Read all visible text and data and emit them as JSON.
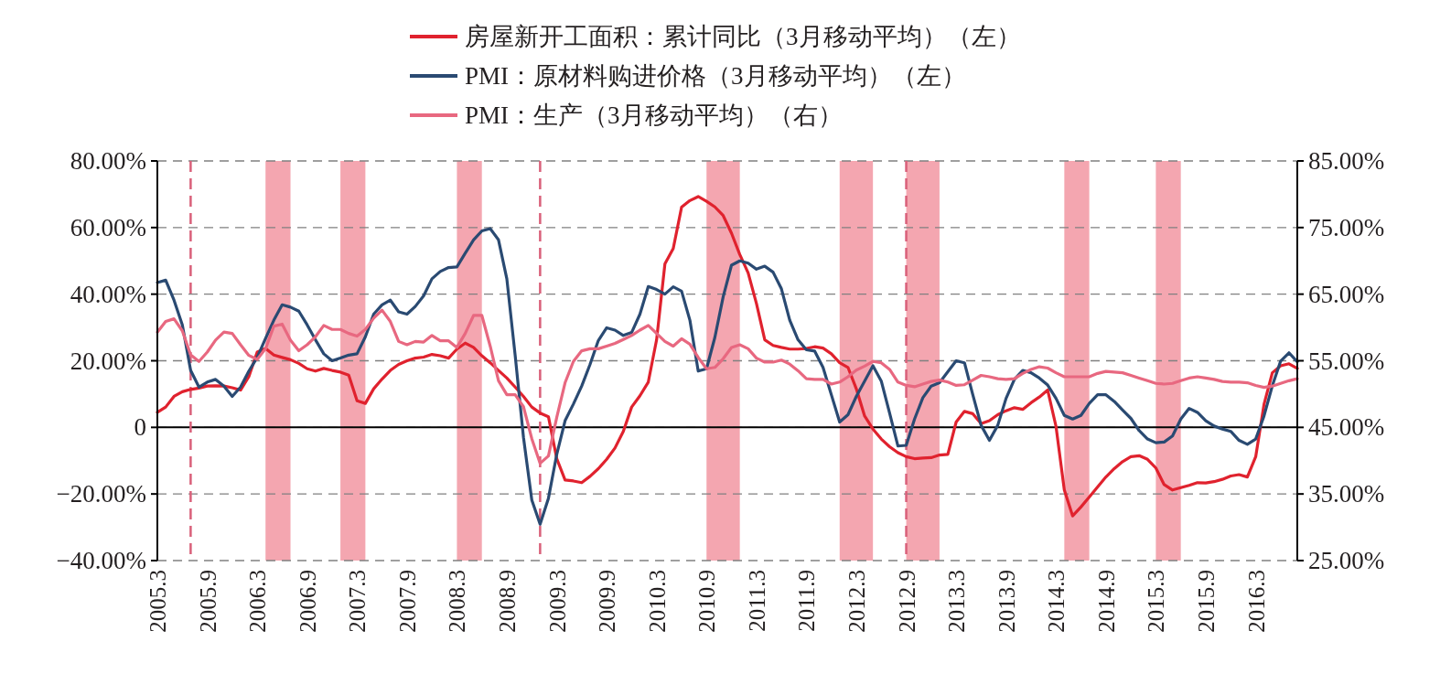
{
  "chart_data": {
    "type": "line",
    "x": [
      "2005-03",
      "2005-04",
      "2005-05",
      "2005-06",
      "2005-07",
      "2005-08",
      "2005-09",
      "2005-10",
      "2005-11",
      "2005-12",
      "2006-01",
      "2006-02",
      "2006-03",
      "2006-04",
      "2006-05",
      "2006-06",
      "2006-07",
      "2006-08",
      "2006-09",
      "2006-10",
      "2006-11",
      "2006-12",
      "2007-01",
      "2007-02",
      "2007-03",
      "2007-04",
      "2007-05",
      "2007-06",
      "2007-07",
      "2007-08",
      "2007-09",
      "2007-10",
      "2007-11",
      "2007-12",
      "2008-01",
      "2008-02",
      "2008-03",
      "2008-04",
      "2008-05",
      "2008-06",
      "2008-07",
      "2008-08",
      "2008-09",
      "2008-10",
      "2008-11",
      "2008-12",
      "2009-01",
      "2009-02",
      "2009-03",
      "2009-04",
      "2009-05",
      "2009-06",
      "2009-07",
      "2009-08",
      "2009-09",
      "2009-10",
      "2009-11",
      "2009-12",
      "2010-01",
      "2010-02",
      "2010-03",
      "2010-04",
      "2010-05",
      "2010-06",
      "2010-07",
      "2010-08",
      "2010-09",
      "2010-10",
      "2010-11",
      "2010-12",
      "2011-01",
      "2011-02",
      "2011-03",
      "2011-04",
      "2011-05",
      "2011-06",
      "2011-07",
      "2011-08",
      "2011-09",
      "2011-10",
      "2011-11",
      "2011-12",
      "2012-01",
      "2012-02",
      "2012-03",
      "2012-04",
      "2012-05",
      "2012-06",
      "2012-07",
      "2012-08",
      "2012-09",
      "2012-10",
      "2012-11",
      "2012-12",
      "2013-01",
      "2013-02",
      "2013-03",
      "2013-04",
      "2013-05",
      "2013-06",
      "2013-07",
      "2013-08",
      "2013-09",
      "2013-10",
      "2013-11",
      "2013-12",
      "2014-01",
      "2014-02",
      "2014-03",
      "2014-04",
      "2014-05",
      "2014-06",
      "2014-07",
      "2014-08",
      "2014-09",
      "2014-10",
      "2014-11",
      "2014-12",
      "2015-01",
      "2015-02",
      "2015-03",
      "2015-04",
      "2015-05",
      "2015-06",
      "2015-07",
      "2015-08",
      "2015-09",
      "2015-10",
      "2015-11",
      "2015-12",
      "2016-01",
      "2016-02",
      "2016-03",
      "2016-04",
      "2016-05",
      "2016-06",
      "2016-07",
      "2016-08"
    ],
    "xlim": [
      "2005-03",
      "2016-08"
    ],
    "xticks": [
      {
        "value": "2005-03",
        "label": "2005.3"
      },
      {
        "value": "2005-09",
        "label": "2005.9"
      },
      {
        "value": "2006-03",
        "label": "2006.3"
      },
      {
        "value": "2006-09",
        "label": "2006.9"
      },
      {
        "value": "2007-03",
        "label": "2007.3"
      },
      {
        "value": "2007-09",
        "label": "2007.9"
      },
      {
        "value": "2008-03",
        "label": "2008.3"
      },
      {
        "value": "2008-09",
        "label": "2008.9"
      },
      {
        "value": "2009-03",
        "label": "2009.3"
      },
      {
        "value": "2009-09",
        "label": "2009.9"
      },
      {
        "value": "2010-03",
        "label": "2010.3"
      },
      {
        "value": "2010-09",
        "label": "2010.9"
      },
      {
        "value": "2011-03",
        "label": "2011.3"
      },
      {
        "value": "2011-09",
        "label": "2011.9"
      },
      {
        "value": "2012-03",
        "label": "2012.3"
      },
      {
        "value": "2012-09",
        "label": "2012.9"
      },
      {
        "value": "2013-03",
        "label": "2013.3"
      },
      {
        "value": "2013-09",
        "label": "2013.9"
      },
      {
        "value": "2014-03",
        "label": "2014.3"
      },
      {
        "value": "2014-09",
        "label": "2014.9"
      },
      {
        "value": "2015-03",
        "label": "2015.3"
      },
      {
        "value": "2015-09",
        "label": "2015.9"
      },
      {
        "value": "2016-03",
        "label": "2016.3"
      }
    ],
    "ylim": [
      -40,
      80
    ],
    "yticks": [
      {
        "value": -40,
        "label": "−40.00%"
      },
      {
        "value": -20,
        "label": "−20.00%"
      },
      0,
      {
        "value": 20,
        "label": "20.00%"
      },
      {
        "value": 40,
        "label": "40.00%"
      },
      {
        "value": 60,
        "label": "60.00%"
      },
      {
        "value": 80,
        "label": "80.00%"
      }
    ],
    "y2lim": [
      25,
      85
    ],
    "y2ticks": [
      {
        "value": 25,
        "label": "25.00%"
      },
      {
        "value": 35,
        "label": "35.00%"
      },
      {
        "value": 45,
        "label": "45.00%"
      },
      {
        "value": 55,
        "label": "55.00%"
      },
      {
        "value": 65,
        "label": "65.00%"
      },
      {
        "value": 75,
        "label": "75.00%"
      },
      {
        "value": 85,
        "label": "85.00%"
      }
    ],
    "grid": "y",
    "legend": "top",
    "line_style": "solid",
    "series": [
      {
        "name": "房屋新开工面积：累计同比（3月移动平均）（左）",
        "color": "#e0222e",
        "values": [
          4.5,
          6.1,
          9.3,
          10.7,
          11.4,
          11.8,
          12.4,
          12.5,
          12.4,
          11.9,
          11.2,
          15.3,
          22.6,
          23.7,
          21.7,
          21.0,
          20.3,
          19.2,
          17.6,
          16.9,
          17.7,
          17.1,
          16.6,
          15.7,
          8.0,
          7.2,
          11.6,
          14.5,
          17.1,
          18.9,
          20.0,
          20.8,
          21.1,
          21.9,
          21.5,
          20.8,
          23.5,
          25.3,
          24.0,
          21.5,
          19.4,
          17.1,
          14.8,
          12.1,
          9.3,
          6.1,
          4.3,
          3.2,
          -9.4,
          -15.8,
          -16.1,
          -16.6,
          -14.7,
          -12.4,
          -9.6,
          -6.2,
          -1.2,
          6.1,
          9.5,
          13.6,
          26.3,
          49.1,
          53.7,
          66.1,
          68.1,
          69.3,
          67.9,
          66.2,
          63.6,
          58.3,
          51.9,
          46.4,
          37.2,
          26.3,
          24.6,
          24.0,
          23.5,
          23.5,
          23.7,
          24.2,
          23.8,
          22.1,
          19.4,
          18.0,
          11.6,
          3.4,
          -0.5,
          -3.5,
          -5.8,
          -7.6,
          -8.8,
          -9.4,
          -9.2,
          -9.1,
          -8.3,
          -8.1,
          1.6,
          4.8,
          4.1,
          1.1,
          2.0,
          3.8,
          5.0,
          5.9,
          5.4,
          7.4,
          9.1,
          11.2,
          0.3,
          -18.8,
          -26.6,
          -23.9,
          -20.9,
          -17.9,
          -14.9,
          -12.4,
          -10.3,
          -8.8,
          -8.5,
          -9.6,
          -12.2,
          -17.2,
          -18.8,
          -18.1,
          -17.4,
          -16.6,
          -16.7,
          -16.3,
          -15.6,
          -14.6,
          -14.2,
          -14.9,
          -8.8,
          6.9,
          16.4,
          18.5,
          19.1,
          17.7
        ]
      },
      {
        "name": "PMI：原材料购进价格（3月移动平均）（左）",
        "color": "#2a4a72",
        "values": [
          43.5,
          44.2,
          38.2,
          30.8,
          17.1,
          12.1,
          13.6,
          14.4,
          12.4,
          9.3,
          12.1,
          16.9,
          21.0,
          26.7,
          32.2,
          36.8,
          36.1,
          34.9,
          30.8,
          26.3,
          22.1,
          20.0,
          20.8,
          21.7,
          22.1,
          27.2,
          34.0,
          36.8,
          38.2,
          34.7,
          34.0,
          36.3,
          39.5,
          44.6,
          46.8,
          48.0,
          48.2,
          52.3,
          56.3,
          59.0,
          59.7,
          56.3,
          44.6,
          21.7,
          -3.0,
          -21.8,
          -29.1,
          -21.3,
          -8.1,
          2.0,
          7.0,
          12.4,
          18.9,
          26.1,
          29.9,
          29.2,
          27.6,
          28.5,
          34.0,
          42.3,
          41.4,
          40.0,
          42.2,
          40.9,
          32.2,
          16.9,
          17.6,
          27.0,
          39.2,
          48.7,
          50.0,
          49.3,
          47.5,
          48.4,
          46.6,
          41.6,
          32.2,
          26.3,
          23.3,
          22.9,
          18.0,
          9.8,
          1.6,
          3.8,
          9.3,
          13.9,
          18.5,
          13.9,
          4.3,
          -5.6,
          -5.4,
          2.5,
          8.9,
          12.4,
          13.4,
          16.7,
          20.0,
          19.4,
          9.8,
          0.6,
          -3.9,
          0.6,
          8.7,
          14.4,
          17.1,
          16.4,
          14.8,
          12.7,
          8.7,
          3.6,
          2.5,
          3.6,
          7.2,
          9.8,
          9.8,
          7.8,
          5.2,
          2.7,
          -1.0,
          -3.5,
          -4.6,
          -4.4,
          -2.6,
          2.5,
          5.7,
          4.5,
          2.0,
          0.4,
          -0.5,
          -1.2,
          -3.9,
          -5.1,
          -3.5,
          3.4,
          12.5,
          19.9,
          22.4,
          19.7
        ]
      },
      {
        "name": "PMI：生产（3月移动平均）（右）",
        "color": "#e86880",
        "axis": "y2",
        "values": [
          59.3,
          60.9,
          61.3,
          59.5,
          55.9,
          54.9,
          56.3,
          58.1,
          59.3,
          59.1,
          57.4,
          55.8,
          55.2,
          56.8,
          60.2,
          60.5,
          58.1,
          56.5,
          57.4,
          58.6,
          60.3,
          59.7,
          59.7,
          59.1,
          58.7,
          59.7,
          61.4,
          62.6,
          60.9,
          57.9,
          57.4,
          57.9,
          57.8,
          58.8,
          58.0,
          58.0,
          57.0,
          59.1,
          61.8,
          61.8,
          57.2,
          52.0,
          49.9,
          49.9,
          48.1,
          43.3,
          39.6,
          40.7,
          46.5,
          51.7,
          54.9,
          56.5,
          56.8,
          56.8,
          57.2,
          57.6,
          58.2,
          58.8,
          59.6,
          60.3,
          59.1,
          57.9,
          57.2,
          58.3,
          57.5,
          55.5,
          53.8,
          54.0,
          55.3,
          57.0,
          57.4,
          56.8,
          55.4,
          54.8,
          54.8,
          55.1,
          54.5,
          53.5,
          52.3,
          52.2,
          52.2,
          51.5,
          51.8,
          52.6,
          53.6,
          54.2,
          54.9,
          54.7,
          53.7,
          51.8,
          51.3,
          51.1,
          51.5,
          51.9,
          52.1,
          51.8,
          51.3,
          51.4,
          52.1,
          52.8,
          52.6,
          52.3,
          52.2,
          52.3,
          53.1,
          53.7,
          54.1,
          53.9,
          53.2,
          52.6,
          52.6,
          52.6,
          52.6,
          53.1,
          53.4,
          53.3,
          53.2,
          52.8,
          52.4,
          52.0,
          51.6,
          51.5,
          51.6,
          52.0,
          52.4,
          52.6,
          52.4,
          52.2,
          51.9,
          51.8,
          51.8,
          51.7,
          51.3,
          51.0,
          51.2,
          51.6,
          52.0,
          52.3
        ]
      }
    ],
    "bands": [
      {
        "axis": "x",
        "from": "2006-04",
        "to": "2006-07",
        "color": "#f4a6b0"
      },
      {
        "axis": "x",
        "from": "2007-01",
        "to": "2007-04",
        "color": "#f4a6b0"
      },
      {
        "axis": "x",
        "from": "2008-03",
        "to": "2008-06",
        "color": "#f4a6b0"
      },
      {
        "axis": "x",
        "from": "2010-09",
        "to": "2011-01",
        "color": "#f4a6b0"
      },
      {
        "axis": "x",
        "from": "2012-01",
        "to": "2012-05",
        "color": "#f4a6b0"
      },
      {
        "axis": "x",
        "from": "2012-09",
        "to": "2013-01",
        "color": "#f4a6b0"
      },
      {
        "axis": "x",
        "from": "2014-04",
        "to": "2014-07",
        "color": "#f4a6b0"
      },
      {
        "axis": "x",
        "from": "2015-03",
        "to": "2015-06",
        "color": "#f4a6b0"
      }
    ],
    "ref_lines": [
      {
        "axis": "y",
        "value": 0,
        "color": "#000000",
        "line_style": "solid"
      },
      {
        "axis": "x",
        "value": "2005-07",
        "color": "#d9607a",
        "line_style": "dashed"
      },
      {
        "axis": "x",
        "value": "2009-01",
        "color": "#d9607a",
        "line_style": "dashed"
      },
      {
        "axis": "x",
        "value": "2012-09",
        "color": "#d9607a",
        "line_style": "dashed"
      }
    ]
  }
}
